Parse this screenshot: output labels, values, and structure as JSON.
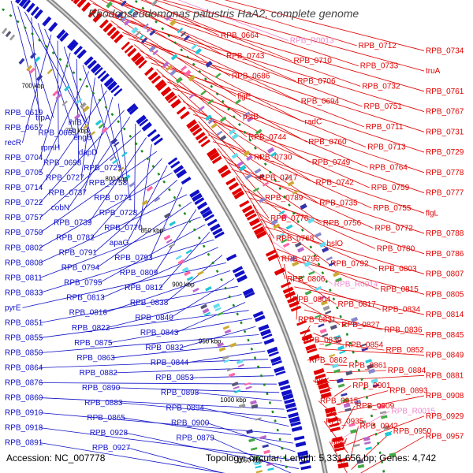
{
  "title": "Rhodopseudomonas palustris HaA2, complete genome",
  "accession": "Accession: NC_007778",
  "summary": "Topology: circular; Length: 5,331,656 bp; Genes: 4,742",
  "colors": {
    "forward": "#e00000",
    "reverse": "#1010c8",
    "rna": "#ee88cc",
    "backbone": "#888888",
    "gc_dots": "#1a8a1a"
  },
  "ticks": [
    "650 kbp",
    "700 kbp",
    "750 kbp",
    "800 kbp",
    "850 kbp",
    "900 kbp",
    "950 kbp",
    "1000 kbp",
    "1050 kbp"
  ],
  "labels_right": [
    "RPB_0664",
    "RPB_R0013",
    "RPB_0712",
    "RPB_0734",
    "RPB_0743",
    "RPB_0710",
    "RPB_0733",
    "truA",
    "RPB_0686",
    "RPB_0706",
    "RPB_0732",
    "RPB_0761",
    "flgE",
    "RPB_0694",
    "RPB_0751",
    "RPB_0767",
    "pstB",
    "radC",
    "RPB_0711",
    "RPB_0731",
    "RPB_0744",
    "RPB_0760",
    "RPB_0713",
    "RPB_0729",
    "RPB_0730",
    "RPB_0749",
    "RPB_0764",
    "RPB_0778",
    "RPB_0717",
    "RPB_0742",
    "RPB_0759",
    "RPB_0777",
    "RPB_0789",
    "RPB_0735",
    "RPB_0755",
    "flgL",
    "RPB_0776",
    "RPB_0756",
    "RPB_0772",
    "RPB_0788",
    "RPB_0768",
    "hslO",
    "RPB_0780",
    "RPB_0786",
    "RPB_0796",
    "RPB_0792",
    "RPB_0803",
    "RPB_0807",
    "RPB_0806",
    "RPB_R0014",
    "RPB_0815",
    "RPB_0805",
    "RPB_0804",
    "RPB_0817",
    "RPB_0834",
    "RPB_0814",
    "RPB_0831",
    "RPB_0827",
    "RPB_0836",
    "RPB_0845",
    "RPB_0839",
    "RPB_0854",
    "RPB_0852",
    "RPB_0849",
    "RPB_0862",
    "RPB_0861",
    "RPB_0884",
    "RPB_0881",
    "lysK",
    "RPB_0901",
    "RPB_0893",
    "RPB_0908",
    "RPB_0915",
    "RPB_0909",
    "RPB_R0015",
    "RPB_0929",
    "RPB_0935",
    "RPB_0942",
    "RPB_0950",
    "RPB_0957",
    "nifW"
  ],
  "labels_left": [
    "RPB_0619",
    "trpA",
    "ihfB",
    "RPB_0657",
    "RPB_0665",
    "engB",
    "recR",
    "rpmH",
    "dapD",
    "RPB_0704",
    "RPB_0698",
    "RPB_0721",
    "RPB_0705",
    "RPB_0727",
    "RPB_0758",
    "RPB_0714",
    "RPB_0737",
    "RPB_0771",
    "RPB_0722",
    "cobN",
    "RPB_0728",
    "RPB_0757",
    "RPB_0739",
    "RPB_0770",
    "RPB_0750",
    "RPB_0782",
    "apaG",
    "RPB_0802",
    "RPB_0791",
    "RPB_0793",
    "RPB_0808",
    "RPB_0794",
    "RPB_0809",
    "RPB_0811",
    "RPB_0795",
    "RPB_0812",
    "RPB_0833",
    "RPB_0813",
    "RPB_0838",
    "pyrE",
    "RPB_0816",
    "RPB_0840",
    "RPB_0851",
    "RPB_0822",
    "RPB_0843",
    "RPB_0855",
    "RPB_0875",
    "RPB_0832",
    "RPB_0850",
    "RPB_0863",
    "RPB_0844",
    "RPB_0864",
    "RPB_0882",
    "RPB_0853",
    "RPB_0876",
    "RPB_0890",
    "RPB_0898",
    "RPB_0860",
    "RPB_0883",
    "RPB_0894",
    "RPB_0910",
    "RPB_0865",
    "RPB_0900",
    "RPB_0918",
    "RPB_0928",
    "RPB_0879",
    "RPB_0891",
    "RPB_0927"
  ]
}
